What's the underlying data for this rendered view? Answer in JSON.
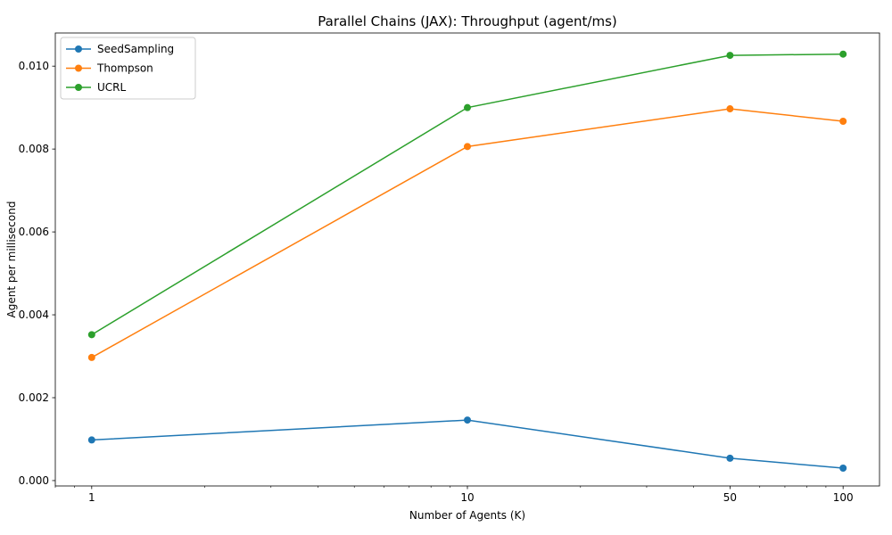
{
  "chart_data": {
    "type": "line",
    "title": "Parallel Chains (JAX): Throughput (agent/ms)",
    "xlabel": "Number of Agents (K)",
    "ylabel": "Agent per millisecond",
    "x_scale": "log",
    "x": [
      1,
      10,
      50,
      100
    ],
    "x_ticks": [
      "1",
      "10",
      "50",
      "100"
    ],
    "xlim": [
      0.8,
      125
    ],
    "ylim": [
      -0.00013,
      0.0108
    ],
    "y_ticks": [
      "0.000",
      "0.002",
      "0.004",
      "0.006",
      "0.008",
      "0.010"
    ],
    "legend_position": "top-left",
    "grid": false,
    "series": [
      {
        "name": "SeedSampling",
        "color": "#1f77b4",
        "values": [
          0.00098,
          0.00146,
          0.00054,
          0.0003
        ]
      },
      {
        "name": "Thompson",
        "color": "#ff7f0e",
        "values": [
          0.00297,
          0.00806,
          0.00897,
          0.00867
        ]
      },
      {
        "name": "UCRL",
        "color": "#2ca02c",
        "values": [
          0.00352,
          0.009,
          0.01026,
          0.01029
        ]
      }
    ]
  }
}
